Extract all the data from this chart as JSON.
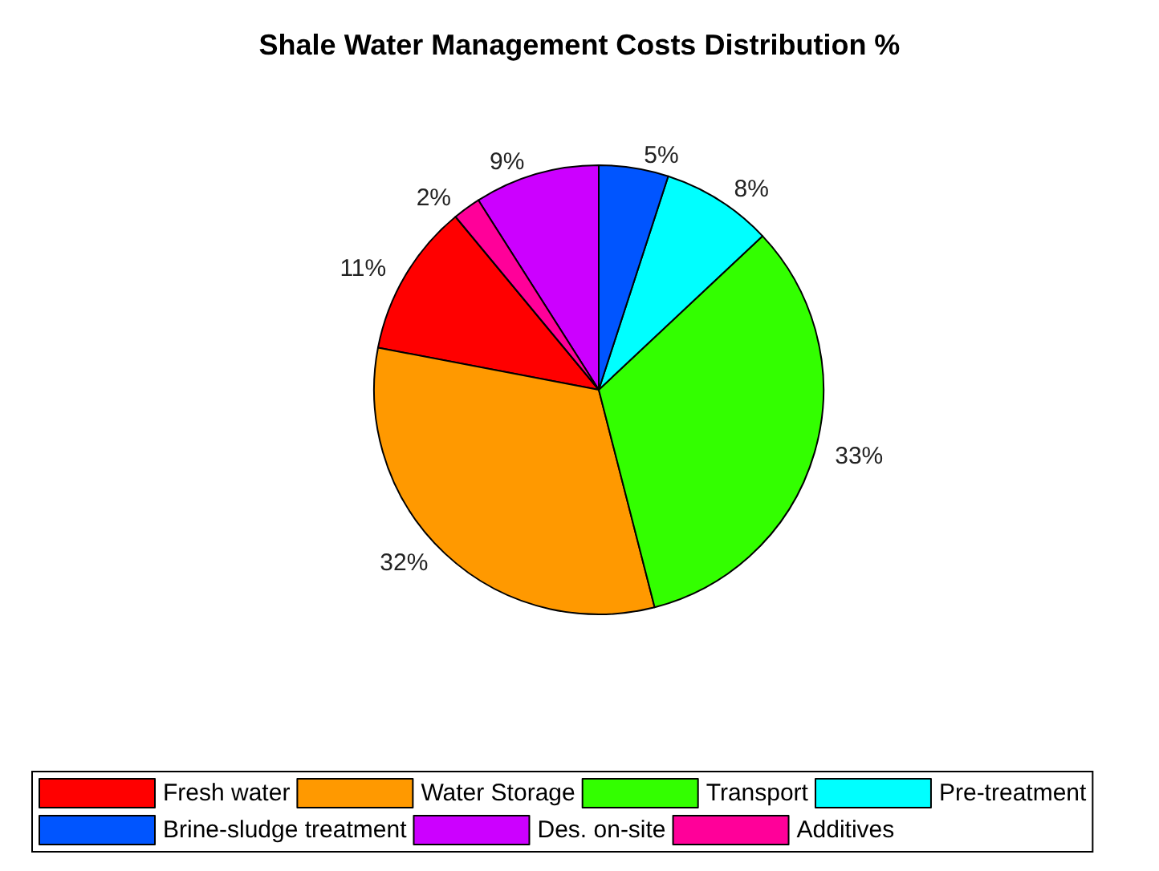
{
  "chart_data": {
    "type": "pie",
    "title": "Shale Water Management Costs Distribution %",
    "categories": [
      "Fresh water",
      "Water Storage",
      "Transport",
      "Pre-treatment",
      "Brine-sludge treatment",
      "Des. on-site",
      "Additives"
    ],
    "values": [
      11,
      32,
      33,
      8,
      5,
      9,
      2
    ],
    "colors": [
      "#ff0000",
      "#ff9900",
      "#33ff00",
      "#00ffff",
      "#0055ff",
      "#cc00ff",
      "#ff0099"
    ],
    "value_labels": [
      "11%",
      "32%",
      "33%",
      "8%",
      "5%",
      "9%",
      "2%"
    ],
    "legend": "bottom"
  }
}
